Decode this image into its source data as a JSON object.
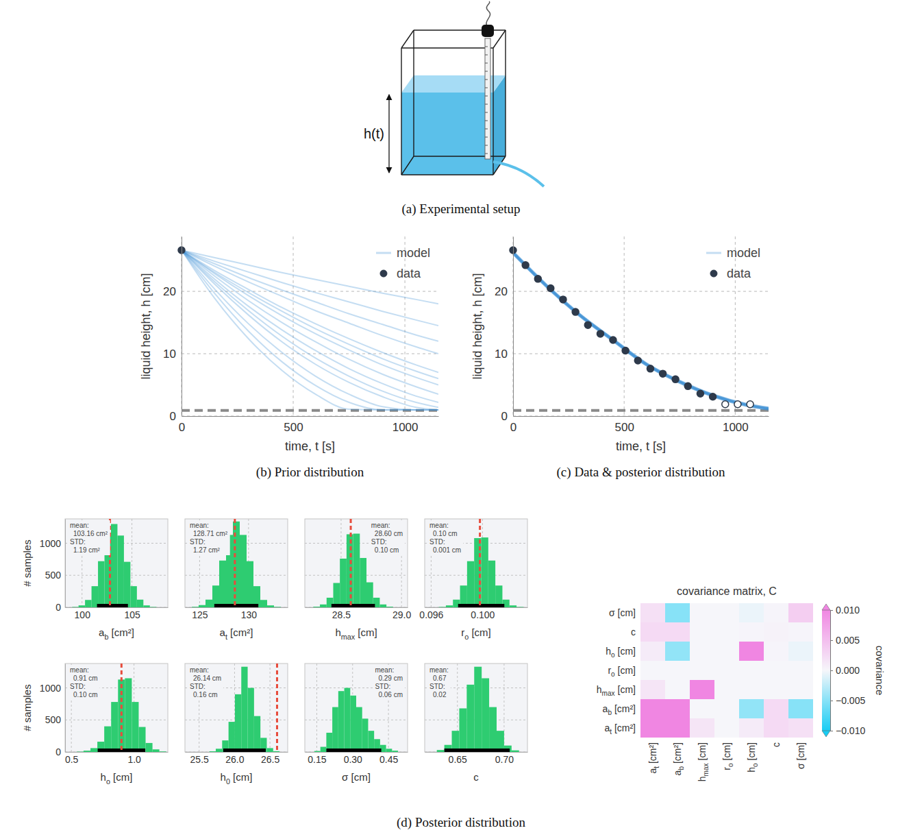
{
  "diagram": {
    "label": "h(t)",
    "caption": "(a) Experimental setup"
  },
  "posterior_panel": {
    "caption": "(d) Posterior distribution"
  },
  "chart_data": [
    {
      "type": "line",
      "caption": "(b) Prior distribution",
      "x_label": "time, t [s]",
      "y_label": "liquid height, h [cm]",
      "xlim": [
        0,
        1150
      ],
      "ylim": [
        0,
        28.8
      ],
      "xticks": [
        0,
        500,
        1000
      ],
      "yticks": [
        0,
        10,
        20
      ],
      "grid": true,
      "legend": "upper right",
      "reference": 0.9,
      "series": [
        {
          "name": "model",
          "type": "line",
          "color": "#3c8fd4",
          "x": [
            0,
            150,
            300,
            450,
            600,
            750,
            900,
            1050,
            1150
          ],
          "values": [
            [
              26.6,
              25.4,
              24.2,
              23.0,
              21.9,
              20.8,
              19.7,
              18.7,
              18.0
            ],
            [
              26.6,
              24.8,
              23.1,
              21.4,
              19.8,
              18.3,
              16.8,
              15.4,
              14.5
            ],
            [
              26.6,
              24.4,
              22.2,
              20.2,
              18.3,
              16.4,
              14.7,
              13.0,
              12.0
            ],
            [
              26.6,
              24.0,
              21.5,
              19.2,
              16.9,
              14.9,
              12.9,
              11.1,
              10.0
            ],
            [
              26.6,
              23.3,
              20.3,
              17.4,
              14.8,
              12.4,
              10.2,
              8.2,
              7.0
            ],
            [
              26.6,
              23.0,
              19.8,
              16.8,
              14.0,
              11.5,
              9.2,
              7.2,
              6.0
            ],
            [
              26.6,
              22.8,
              19.3,
              16.1,
              13.2,
              10.6,
              8.2,
              6.2,
              5.0
            ],
            [
              26.6,
              22.4,
              18.5,
              15.0,
              11.9,
              9.1,
              6.7,
              4.7,
              3.5
            ],
            [
              26.6,
              21.9,
              17.6,
              13.8,
              10.5,
              7.6,
              5.2,
              3.2,
              2.2
            ],
            [
              26.6,
              21.5,
              16.9,
              12.8,
              9.3,
              6.4,
              4.0,
              2.2,
              1.4
            ],
            [
              26.6,
              21.1,
              16.2,
              11.9,
              8.3,
              5.4,
              3.1,
              1.4,
              1.0
            ],
            [
              26.6,
              20.3,
              14.8,
              10.2,
              6.4,
              3.5,
              1.5,
              1.0,
              1.0
            ],
            [
              26.6,
              19.6,
              13.6,
              8.7,
              4.9,
              2.2,
              1.0,
              1.0,
              1.0
            ],
            [
              26.6,
              18.8,
              12.4,
              7.3,
              3.5,
              1.1,
              1.0,
              1.0,
              1.0
            ]
          ]
        },
        {
          "name": "data",
          "type": "scatter",
          "marker": "circle",
          "color": "#2e3a4b",
          "x": [
            0
          ],
          "values": [
            26.6
          ]
        }
      ]
    },
    {
      "type": "line",
      "caption": "(c) Data & posterior distribution",
      "x_label": "time, t [s]",
      "y_label": "liquid height, h [cm]",
      "xlim": [
        0,
        1150
      ],
      "ylim": [
        0,
        28.8
      ],
      "xticks": [
        0,
        500,
        1000
      ],
      "yticks": [
        0,
        10,
        20
      ],
      "grid": true,
      "legend": "upper right",
      "reference": 0.9,
      "series": [
        {
          "name": "model",
          "type": "line",
          "color": "#3c8fd4",
          "x": [
            0,
            150,
            300,
            450,
            600,
            750,
            900,
            1050,
            1150
          ],
          "values": [
            [
              26.2,
              20.9,
              16.2,
              12.2,
              8.3,
              5.5,
              3.3,
              1.8,
              1.2
            ],
            [
              26.1,
              20.8,
              16.1,
              12.1,
              8.2,
              5.4,
              3.2,
              1.7,
              1.1
            ],
            [
              26.3,
              21.0,
              16.3,
              12.3,
              8.4,
              5.6,
              3.4,
              1.9,
              1.3
            ]
          ]
        },
        {
          "name": "data",
          "type": "scatter",
          "marker": "circle",
          "color": "#2e3a4b",
          "x": [
            0,
            56,
            112,
            169,
            225,
            281,
            337,
            393,
            450,
            506,
            562,
            618,
            674,
            731,
            787,
            843,
            899
          ],
          "values": [
            26.6,
            24.2,
            22.0,
            20.5,
            18.7,
            16.7,
            14.6,
            13.2,
            12.2,
            10.5,
            8.9,
            7.6,
            6.8,
            5.9,
            4.8,
            3.6,
            3.1
          ]
        },
        {
          "type": "scatter",
          "marker": "open-circle",
          "color": "#2e3a4b",
          "x": [
            955,
            1011,
            1067
          ],
          "values": [
            1.9,
            1.9,
            1.9
          ]
        }
      ]
    },
    {
      "type": "histogram",
      "x_label": {
        "text": "a",
        "sub": "b",
        "unit": " [cm²]"
      },
      "y_label": "# samples",
      "bins": [
        99.0,
        99.65,
        100.3,
        100.95,
        101.6,
        102.25,
        102.9,
        103.55,
        104.2,
        104.85,
        105.5,
        106.15,
        106.8,
        107.45
      ],
      "counts": [
        6,
        30,
        115,
        330,
        720,
        1110,
        1300,
        1120,
        710,
        330,
        120,
        30,
        6
      ],
      "xlim": [
        98.3,
        108.6
      ],
      "ylim": [
        0,
        1380
      ],
      "xticks": [
        100,
        105
      ],
      "yticks": [
        0,
        500,
        1000
      ],
      "grid": true,
      "color": "#2ecc71",
      "annotation": [
        "mean:",
        "103.16 cm²",
        "STD:",
        "1.19 cm²"
      ],
      "reference": 102.8,
      "interval": [
        101.5,
        104.6
      ]
    },
    {
      "type": "histogram",
      "x_label": {
        "text": "a",
        "sub": "t",
        "unit": " [cm²]"
      },
      "bins": [
        124.2,
        124.9,
        125.6,
        126.3,
        127.0,
        127.7,
        128.4,
        129.1,
        129.8,
        130.5,
        131.2,
        131.9,
        132.6,
        133.3
      ],
      "counts": [
        8,
        35,
        120,
        340,
        730,
        1130,
        1340,
        1130,
        720,
        330,
        115,
        30,
        7
      ],
      "xlim": [
        123.5,
        134.0
      ],
      "ylim": [
        0,
        1380
      ],
      "xticks": [
        125,
        130
      ],
      "yticks": [
        0,
        500,
        1000
      ],
      "grid": true,
      "tick_labels": "x",
      "color": "#2ecc71",
      "annotation": [
        "mean:",
        "128.71 cm²",
        "STD:",
        "1.27 cm²"
      ],
      "reference": 128.6,
      "interval": [
        126.5,
        131.0
      ]
    },
    {
      "type": "histogram",
      "x_label": {
        "text": "h",
        "sub": "max",
        "unit": " [cm]"
      },
      "bins": [
        28.27,
        28.325,
        28.38,
        28.435,
        28.49,
        28.545,
        28.6,
        28.655,
        28.71,
        28.765,
        28.82,
        28.875,
        28.93
      ],
      "counts": [
        10,
        45,
        150,
        380,
        760,
        1140,
        1150,
        770,
        390,
        150,
        45,
        10
      ],
      "xlim": [
        28.2,
        29.05
      ],
      "ylim": [
        0,
        1380
      ],
      "xticks": [
        28.5,
        {
          "value": 29,
          "label": "29.0"
        }
      ],
      "yticks": [
        0,
        500,
        1000
      ],
      "grid": true,
      "tick_labels": "x",
      "color": "#2ecc71",
      "annotation": [
        "mean:",
        "28.60 cm",
        "STD:",
        "0.10 cm"
      ],
      "reference": 28.58,
      "interval": [
        28.42,
        28.78
      ]
    },
    {
      "type": "histogram",
      "x_label": {
        "text": "r",
        "sub": "o",
        "unit": " [cm]"
      },
      "bins": [
        0.0966,
        0.09715,
        0.0977,
        0.09825,
        0.0988,
        0.09935,
        0.0999,
        0.10045,
        0.101,
        0.10155,
        0.1021,
        0.10265,
        0.1032
      ],
      "counts": [
        6,
        30,
        120,
        340,
        720,
        1080,
        1090,
        730,
        340,
        120,
        30,
        6
      ],
      "xlim": [
        0.0955,
        0.1035
      ],
      "ylim": [
        0,
        1380
      ],
      "xticks": [
        0.096,
        {
          "value": 0.1,
          "label": "0.100"
        }
      ],
      "yticks": [
        0,
        500,
        1000
      ],
      "grid": true,
      "tick_labels": "x",
      "color": "#2ecc71",
      "annotation": [
        "mean:",
        "0.10 cm",
        "STD:",
        "0.001 cm"
      ],
      "reference": 0.0998,
      "interval": [
        0.0981,
        0.1017
      ]
    },
    {
      "type": "histogram",
      "x_label": {
        "text": "h",
        "sub": "o",
        "unit": " [cm]"
      },
      "y_label": "# samples",
      "bins": [
        0.5425,
        0.5975,
        0.6525,
        0.7075,
        0.7625,
        0.8175,
        0.8725,
        0.9275,
        0.9825,
        1.0375,
        1.0925,
        1.1475,
        1.2025,
        1.2575
      ],
      "counts": [
        5,
        20,
        60,
        160,
        400,
        780,
        1130,
        1150,
        780,
        390,
        140,
        40,
        8
      ],
      "xlim": [
        0.45,
        1.27
      ],
      "ylim": [
        0,
        1380
      ],
      "xticks": [
        0.5,
        {
          "value": 1,
          "label": "1.0"
        }
      ],
      "yticks": [
        0,
        500,
        1000
      ],
      "grid": true,
      "color": "#2ecc71",
      "annotation": [
        "mean:",
        "0.91 cm",
        "STD:",
        "0.10 cm"
      ],
      "reference": 0.9,
      "interval": [
        0.71,
        1.09
      ]
    },
    {
      "type": "histogram",
      "x_label": {
        "text": "h",
        "sub": "0",
        "unit": " [cm]"
      },
      "bins": [
        25.645,
        25.735,
        25.825,
        25.915,
        26.005,
        26.095,
        26.185,
        26.275,
        26.365,
        26.455,
        26.545,
        26.635
      ],
      "counts": [
        10,
        50,
        180,
        470,
        900,
        1330,
        1000,
        560,
        220,
        60,
        12
      ],
      "xlim": [
        25.3,
        26.75
      ],
      "ylim": [
        0,
        1380
      ],
      "xticks": [
        25.5,
        {
          "value": 26,
          "label": "26.0"
        },
        26.5
      ],
      "yticks": [
        0,
        500,
        1000
      ],
      "grid": true,
      "tick_labels": "x",
      "color": "#2ecc71",
      "annotation": [
        "mean:",
        "26.14 cm",
        "STD:",
        "0.16 cm"
      ],
      "reference": 26.6,
      "interval": [
        25.84,
        26.44
      ]
    },
    {
      "type": "histogram",
      "x_label": {
        "text": "σ [cm]"
      },
      "bins": [
        0.14,
        0.165,
        0.19,
        0.215,
        0.24,
        0.265,
        0.29,
        0.315,
        0.34,
        0.365,
        0.39,
        0.415,
        0.44,
        0.465,
        0.49
      ],
      "counts": [
        15,
        80,
        300,
        700,
        950,
        1000,
        880,
        700,
        520,
        330,
        200,
        110,
        50,
        20
      ],
      "xlim": [
        0.1,
        0.53
      ],
      "ylim": [
        0,
        1380
      ],
      "xticks": [
        0.15,
        {
          "value": 0.3,
          "label": "0.30"
        },
        0.45
      ],
      "yticks": [
        0,
        500,
        1000
      ],
      "grid": true,
      "tick_labels": "x",
      "color": "#2ecc71",
      "annotation": [
        "mean:",
        "0.29 cm",
        "STD:",
        "0.06 cm"
      ],
      "interval": [
        0.19,
        0.42
      ]
    },
    {
      "type": "histogram",
      "x_label": {
        "text": "c"
      },
      "bins": [
        0.628,
        0.636,
        0.644,
        0.652,
        0.66,
        0.668,
        0.676,
        0.684,
        0.692,
        0.7,
        0.708,
        0.716
      ],
      "counts": [
        30,
        110,
        330,
        680,
        1050,
        1330,
        1150,
        700,
        330,
        100,
        25
      ],
      "xlim": [
        0.615,
        0.725
      ],
      "ylim": [
        0,
        1380
      ],
      "xticks": [
        0.65,
        {
          "value": 0.7,
          "label": "0.70"
        }
      ],
      "yticks": [
        0,
        500,
        1000
      ],
      "grid": true,
      "tick_labels": "x",
      "color": "#2ecc71",
      "annotation": [
        "mean:",
        "0.67",
        "STD:",
        "0.02"
      ],
      "interval": [
        0.636,
        0.706
      ]
    },
    {
      "type": "heatmap",
      "title": "covariance matrix, C",
      "labels": [
        {
          "text": "a",
          "sub": "t",
          "unit": " [cm²]"
        },
        {
          "text": "a",
          "sub": "b",
          "unit": " [cm²]"
        },
        {
          "text": "h",
          "sub": "max",
          "unit": " [cm]"
        },
        {
          "text": "r",
          "sub": "o",
          "unit": " [cm]"
        },
        {
          "text": "h",
          "sub": "o",
          "unit": " [cm]"
        },
        {
          "text": "c"
        },
        {
          "text": "σ [cm]"
        }
      ],
      "values": [
        [
          1.61,
          1.2,
          0.0015,
          0.0,
          0.001,
          0.0025,
          0.002
        ],
        [
          1.2,
          1.42,
          0.0,
          0.0,
          -0.0045,
          0.0025,
          -0.005
        ],
        [
          0.0015,
          0.0,
          0.01,
          0.0,
          0.0,
          0.0,
          0.0
        ],
        [
          0.0,
          0.0,
          0.0,
          1e-06,
          0.0,
          0.0,
          0.0
        ],
        [
          0.001,
          -0.0045,
          0.0,
          0.0,
          0.01,
          0.0002,
          -0.0005
        ],
        [
          0.0025,
          0.0025,
          0.0,
          0.0,
          0.0002,
          0.0004,
          0.0002
        ],
        [
          0.002,
          -0.005,
          0.0,
          0.0,
          -0.0005,
          0.0002,
          0.0036
        ]
      ],
      "colorbar": {
        "label": "covariance",
        "range": [
          -0.01,
          0.01
        ],
        "ticks": [
          {
            "value": -0.01,
            "label": "−0.010"
          },
          {
            "value": -0.005,
            "label": "−0.005"
          },
          {
            "value": 0,
            "label": "0.000"
          },
          {
            "value": 0.005,
            "label": "0.005"
          },
          {
            "value": 0.01,
            "label": "0.010"
          }
        ]
      }
    }
  ]
}
